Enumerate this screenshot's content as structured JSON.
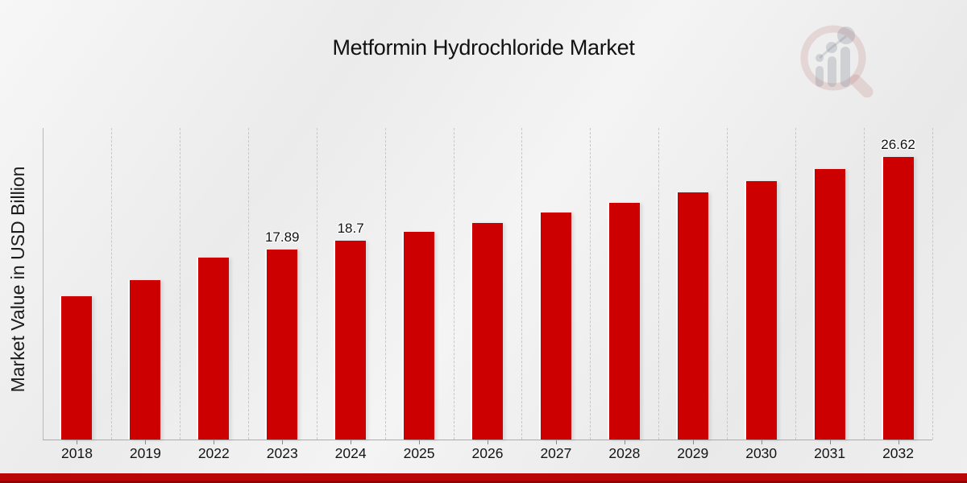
{
  "title": "Metformin Hydrochloride Market",
  "y_axis_label": "Market Value in USD Billion",
  "logo": {
    "name": "magnifier-bar-chart-watermark"
  },
  "colors": {
    "bar": "#cc0000",
    "accent_band": "#b90606",
    "accent_band_shadow": "#8d0404",
    "gridline": "#c7c7c7",
    "background_light": "#f4f4f4",
    "background_dark": "#e9e9e9"
  },
  "chart_data": {
    "type": "bar",
    "title": "Metformin Hydrochloride Market",
    "xlabel": "",
    "ylabel": "Market Value in USD Billion",
    "categories": [
      "2018",
      "2019",
      "2022",
      "2023",
      "2024",
      "2025",
      "2026",
      "2027",
      "2028",
      "2029",
      "2030",
      "2031",
      "2032"
    ],
    "values": [
      13.5,
      15.0,
      17.12,
      17.89,
      18.7,
      19.54,
      20.43,
      21.35,
      22.31,
      23.32,
      24.37,
      25.47,
      26.62
    ],
    "bar_labels": [
      "",
      "",
      "",
      "17.89",
      "18.7",
      "",
      "",
      "",
      "",
      "",
      "",
      "",
      "26.62"
    ],
    "ylim": [
      0,
      29.35
    ],
    "grid": "vertical-dashed",
    "legend": "none",
    "bar_color": "#cc0000"
  }
}
